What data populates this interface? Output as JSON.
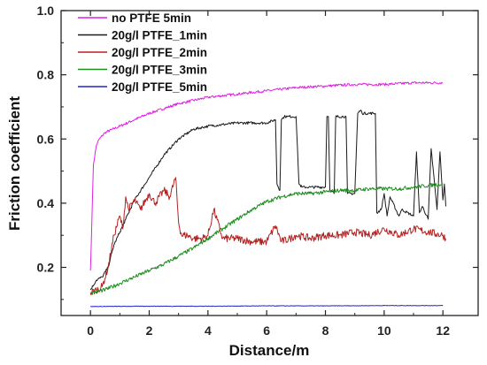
{
  "chart_data": {
    "type": "line",
    "xlabel": "Distance/m",
    "ylabel": "Friction coefficient",
    "xlim": [
      -1,
      13.2
    ],
    "ylim": [
      0.05,
      1.0
    ],
    "xticks": [
      "0",
      "2",
      "4",
      "6",
      "8",
      "10",
      "12"
    ],
    "xtick_values": [
      0,
      2,
      4,
      6,
      8,
      10,
      12
    ],
    "yticks": [
      "0.2",
      "0.4",
      "0.6",
      "0.8",
      "1.0"
    ],
    "ytick_values": [
      0.2,
      0.4,
      0.6,
      0.8,
      1.0
    ],
    "legend_position": "top-left",
    "series": [
      {
        "name": "no PTFE 5min",
        "color": "#e020e0",
        "noise": 0.004,
        "x": [
          0,
          0.05,
          0.1,
          0.2,
          0.3,
          0.5,
          1,
          1.5,
          2,
          3,
          4,
          5,
          6,
          7,
          8,
          9,
          10,
          11,
          12
        ],
        "y": [
          0.19,
          0.35,
          0.52,
          0.58,
          0.6,
          0.62,
          0.64,
          0.66,
          0.68,
          0.71,
          0.73,
          0.74,
          0.75,
          0.76,
          0.765,
          0.77,
          0.77,
          0.775,
          0.775
        ]
      },
      {
        "name": "20g/l PTFE_1min",
        "color": "#1a1a1a",
        "noise": 0.004,
        "x": [
          0,
          0.2,
          0.4,
          0.6,
          0.8,
          1,
          1.2,
          1.5,
          2,
          2.5,
          3,
          3.5,
          4,
          5,
          6,
          6.3,
          6.35,
          6.45,
          6.5,
          6.6,
          6.7,
          7,
          7.1,
          7.2,
          7.5,
          8,
          8.05,
          8.1,
          8.15,
          8.3,
          8.35,
          8.7,
          8.75,
          9,
          9.1,
          9.2,
          9.25,
          9.7,
          9.75,
          9.9,
          10,
          10.1,
          10.2,
          10.5,
          10.6,
          11,
          11.1,
          11.2,
          11.3,
          11.5,
          11.6,
          11.8,
          11.9,
          12,
          12.05,
          12.1
        ],
        "y": [
          0.13,
          0.16,
          0.17,
          0.2,
          0.27,
          0.31,
          0.35,
          0.41,
          0.48,
          0.55,
          0.6,
          0.63,
          0.64,
          0.65,
          0.65,
          0.66,
          0.46,
          0.44,
          0.66,
          0.67,
          0.67,
          0.67,
          0.46,
          0.45,
          0.45,
          0.45,
          0.67,
          0.67,
          0.44,
          0.43,
          0.67,
          0.67,
          0.43,
          0.43,
          0.68,
          0.69,
          0.68,
          0.68,
          0.37,
          0.38,
          0.43,
          0.36,
          0.42,
          0.36,
          0.38,
          0.36,
          0.56,
          0.37,
          0.39,
          0.35,
          0.57,
          0.38,
          0.56,
          0.41,
          0.46,
          0.39
        ]
      },
      {
        "name": "20g/l PTFE_2min",
        "color": "#b22222",
        "noise": 0.012,
        "x": [
          0,
          0.2,
          0.4,
          0.6,
          0.8,
          1.0,
          1.1,
          1.2,
          1.3,
          1.5,
          1.7,
          2,
          2.2,
          2.5,
          2.7,
          2.9,
          3.0,
          3.1,
          3.3,
          3.5,
          3.8,
          4,
          4.2,
          4.5,
          5,
          5.5,
          6,
          6.3,
          6.5,
          6.8,
          7,
          7.5,
          8,
          8.5,
          9,
          9.5,
          10,
          10.5,
          11,
          11.5,
          12,
          12.1
        ],
        "y": [
          0.12,
          0.13,
          0.14,
          0.2,
          0.3,
          0.36,
          0.32,
          0.42,
          0.38,
          0.41,
          0.38,
          0.43,
          0.4,
          0.44,
          0.42,
          0.48,
          0.34,
          0.3,
          0.3,
          0.29,
          0.29,
          0.3,
          0.38,
          0.29,
          0.29,
          0.28,
          0.28,
          0.33,
          0.28,
          0.29,
          0.3,
          0.29,
          0.3,
          0.3,
          0.31,
          0.3,
          0.32,
          0.3,
          0.32,
          0.31,
          0.3,
          0.29
        ]
      },
      {
        "name": "20g/l PTFE_3min",
        "color": "#1e8c1e",
        "noise": 0.006,
        "x": [
          0,
          0.5,
          1,
          1.5,
          2,
          2.5,
          3,
          3.5,
          4,
          4.5,
          5,
          5.5,
          6,
          6.5,
          7,
          7.5,
          8,
          8.5,
          9,
          9.5,
          10,
          10.5,
          11,
          11.5,
          12
        ],
        "y": [
          0.12,
          0.13,
          0.15,
          0.17,
          0.19,
          0.21,
          0.235,
          0.26,
          0.29,
          0.32,
          0.35,
          0.38,
          0.405,
          0.42,
          0.43,
          0.43,
          0.435,
          0.44,
          0.44,
          0.445,
          0.445,
          0.445,
          0.45,
          0.455,
          0.46
        ]
      },
      {
        "name": "20g/l PTFE_5min",
        "color": "#2424cc",
        "noise": 0.0008,
        "x": [
          0,
          2,
          4,
          6,
          8,
          10,
          12
        ],
        "y": [
          0.078,
          0.079,
          0.079,
          0.08,
          0.08,
          0.081,
          0.081
        ]
      }
    ]
  }
}
